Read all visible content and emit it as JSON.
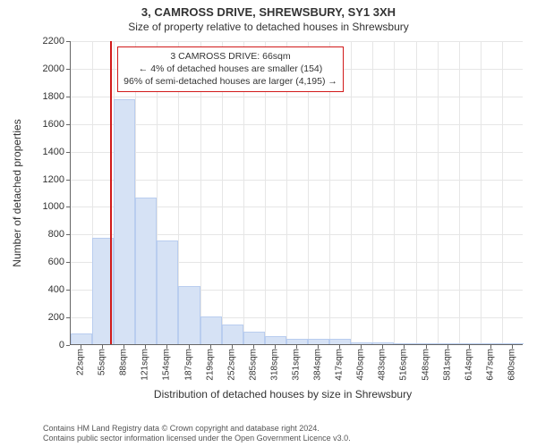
{
  "title": "3, CAMROSS DRIVE, SHREWSBURY, SY1 3XH",
  "subtitle": "Size of property relative to detached houses in Shrewsbury",
  "chart": {
    "type": "histogram",
    "xlabel": "Distribution of detached houses by size in Shrewsbury",
    "ylabel": "Number of detached properties",
    "ylim": [
      0,
      2200
    ],
    "ytick_step": 200,
    "xticks": [
      "22sqm",
      "55sqm",
      "88sqm",
      "121sqm",
      "154sqm",
      "187sqm",
      "219sqm",
      "252sqm",
      "285sqm",
      "318sqm",
      "351sqm",
      "384sqm",
      "417sqm",
      "450sqm",
      "483sqm",
      "516sqm",
      "548sqm",
      "581sqm",
      "614sqm",
      "647sqm",
      "680sqm"
    ],
    "x_start": 22,
    "x_step": 33,
    "values": [
      80,
      770,
      1770,
      1060,
      750,
      420,
      200,
      140,
      90,
      60,
      40,
      40,
      40,
      10,
      10,
      5,
      5,
      5,
      5,
      5,
      5
    ],
    "bar_fill": "#d6e2f5",
    "bar_stroke": "#b9cdef",
    "grid_color": "#e6e6e6",
    "axis_color": "#666666",
    "background_color": "#ffffff",
    "marker_value": 66,
    "marker_color": "#d11a1a",
    "annotation_border": "#d11a1a",
    "annotation_lines": [
      "3 CAMROSS DRIVE: 66sqm",
      "← 4% of detached houses are smaller (154)",
      "96% of semi-detached houses are larger (4,195) →"
    ],
    "title_fontsize": 13,
    "subtitle_fontsize": 12,
    "label_fontsize": 12,
    "tick_fontsize": 11,
    "xtick_fontsize": 10,
    "annotation_fontsize": 10.5
  },
  "footer": {
    "line1": "Contains HM Land Registry data © Crown copyright and database right 2024.",
    "line2": "Contains public sector information licensed under the Open Government Licence v3.0."
  }
}
